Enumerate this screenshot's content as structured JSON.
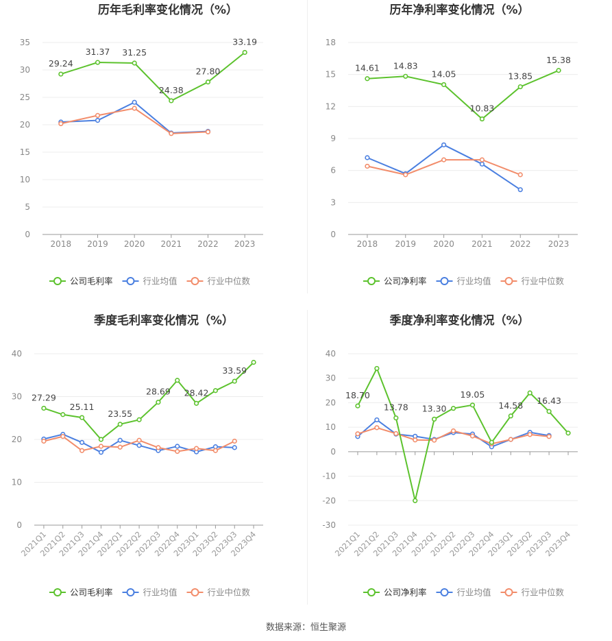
{
  "chart_data": [
    {
      "type": "line",
      "title": "历年毛利率变化情况（%）",
      "categories": [
        "2018",
        "2019",
        "2020",
        "2021",
        "2022",
        "2023"
      ],
      "ylim": [
        0,
        35
      ],
      "yticks": [
        0,
        5,
        10,
        15,
        20,
        25,
        30,
        35
      ],
      "series": [
        {
          "name": "公司毛利率",
          "color": "#5cc22d",
          "values": [
            29.24,
            31.37,
            31.25,
            24.38,
            27.8,
            33.19
          ],
          "labels": [
            "29.24",
            "31.37",
            "31.25",
            "24.38",
            "27.80",
            "33.19"
          ]
        },
        {
          "name": "行业均值",
          "color": "#4a7fe0",
          "values": [
            20.5,
            20.8,
            24.1,
            18.5,
            18.8,
            null
          ]
        },
        {
          "name": "行业中位数",
          "color": "#f28c6a",
          "values": [
            20.2,
            21.7,
            23.0,
            18.4,
            18.7,
            null
          ]
        }
      ]
    },
    {
      "type": "line",
      "title": "历年净利率变化情况（%）",
      "categories": [
        "2018",
        "2019",
        "2020",
        "2021",
        "2022",
        "2023"
      ],
      "ylim": [
        0,
        18
      ],
      "yticks": [
        0,
        3,
        6,
        9,
        12,
        15,
        18
      ],
      "series": [
        {
          "name": "公司净利率",
          "color": "#5cc22d",
          "values": [
            14.61,
            14.83,
            14.05,
            10.83,
            13.85,
            15.38
          ],
          "labels": [
            "14.61",
            "14.83",
            "14.05",
            "10.83",
            "13.85",
            "15.38"
          ]
        },
        {
          "name": "行业均值",
          "color": "#4a7fe0",
          "values": [
            7.2,
            5.7,
            8.4,
            6.6,
            4.2,
            null
          ]
        },
        {
          "name": "行业中位数",
          "color": "#f28c6a",
          "values": [
            6.4,
            5.6,
            7.0,
            7.0,
            5.6,
            null
          ]
        }
      ]
    },
    {
      "type": "line",
      "title": "季度毛利率变化情况（%）",
      "categories": [
        "2021Q1",
        "2021Q2",
        "2021Q3",
        "2021Q4",
        "2022Q1",
        "2022Q2",
        "2022Q3",
        "2022Q4",
        "2023Q1",
        "2023Q2",
        "2023Q3",
        "2023Q4"
      ],
      "ylim": [
        0,
        40
      ],
      "yticks": [
        0,
        10,
        20,
        30,
        40
      ],
      "series": [
        {
          "name": "公司毛利率",
          "color": "#5cc22d",
          "values": [
            27.29,
            25.8,
            25.11,
            20.0,
            23.55,
            24.6,
            28.69,
            33.8,
            28.42,
            31.4,
            33.59,
            38.0
          ],
          "labels": [
            "27.29",
            "",
            "25.11",
            "",
            "23.55",
            "",
            "28.69",
            "",
            "28.42",
            "",
            "33.59",
            ""
          ]
        },
        {
          "name": "行业均值",
          "color": "#4a7fe0",
          "values": [
            20.1,
            21.2,
            19.3,
            17.0,
            19.8,
            18.6,
            17.4,
            18.4,
            17.1,
            18.3,
            18.1,
            null
          ]
        },
        {
          "name": "行业中位数",
          "color": "#f28c6a",
          "values": [
            19.6,
            20.7,
            17.4,
            18.4,
            18.2,
            19.8,
            18.1,
            17.2,
            17.9,
            17.4,
            19.6,
            null
          ]
        }
      ]
    },
    {
      "type": "line",
      "title": "季度净利率变化情况（%）",
      "categories": [
        "2021Q1",
        "2021Q2",
        "2021Q3",
        "2021Q4",
        "2022Q1",
        "2022Q2",
        "2022Q3",
        "2022Q4",
        "2023Q1",
        "2023Q2",
        "2023Q3",
        "2023Q4"
      ],
      "ylim": [
        -30,
        40
      ],
      "yticks": [
        -30,
        -20,
        -10,
        0,
        10,
        20,
        30,
        40
      ],
      "series": [
        {
          "name": "公司净利率",
          "color": "#5cc22d",
          "values": [
            18.7,
            34.0,
            13.78,
            -20.0,
            13.3,
            17.7,
            19.05,
            3.8,
            14.58,
            24.0,
            16.43,
            7.6
          ],
          "labels": [
            "18.70",
            "",
            "13.78",
            "",
            "13.30",
            "",
            "19.05",
            "",
            "14.58",
            "",
            "16.43",
            ""
          ]
        },
        {
          "name": "行业均值",
          "color": "#4a7fe0",
          "values": [
            6.2,
            13.0,
            7.2,
            6.3,
            5.0,
            7.8,
            7.2,
            2.0,
            5.0,
            7.9,
            6.6,
            null
          ]
        },
        {
          "name": "行业中位数",
          "color": "#f28c6a",
          "values": [
            7.3,
            9.8,
            7.4,
            4.8,
            4.7,
            8.5,
            6.4,
            3.2,
            5.0,
            7.0,
            6.2,
            null
          ]
        }
      ]
    }
  ],
  "source_label": "数据来源：恒生聚源"
}
